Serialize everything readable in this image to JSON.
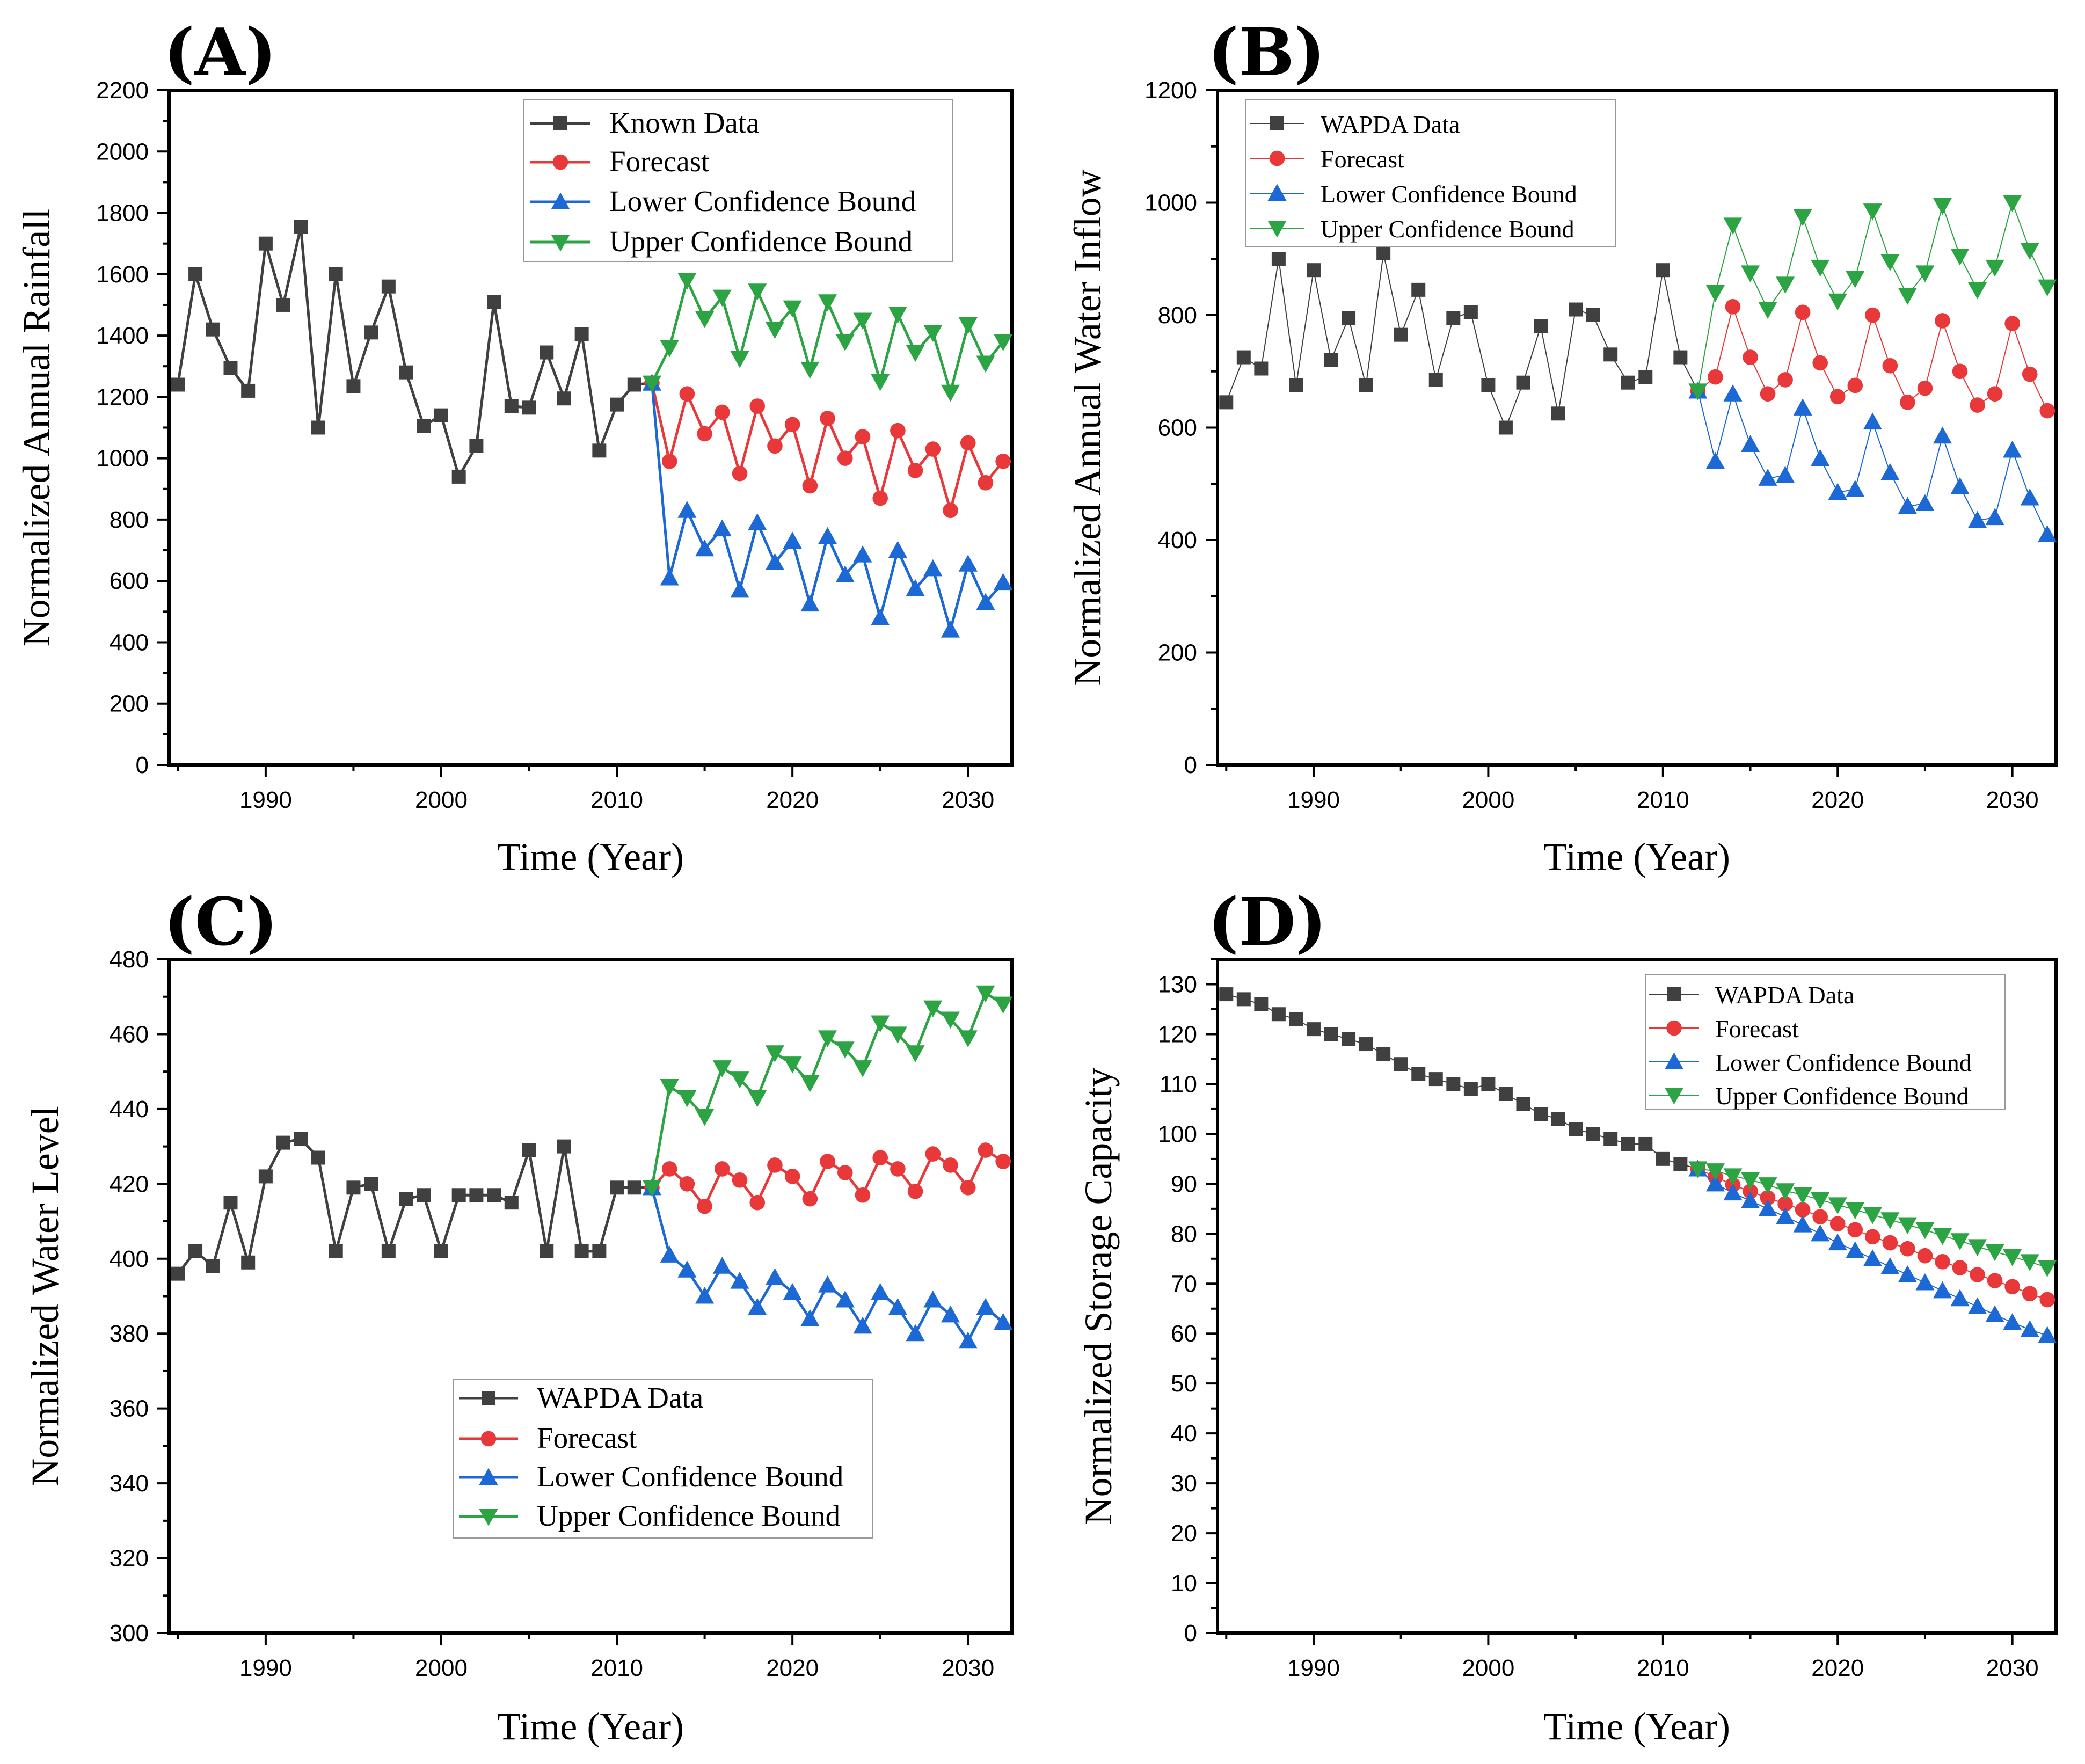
{
  "chart_data": [
    {
      "panel_label": "(A)",
      "type": "line",
      "xlabel": "Time (Year)",
      "ylabel": "Normalized Annual Rainfall",
      "xlim": [
        1984.5,
        2032.5
      ],
      "ylim": [
        0,
        2200
      ],
      "xticks": [
        1990,
        2000,
        2010,
        2020,
        2030
      ],
      "yticks": [
        0,
        200,
        400,
        600,
        800,
        1000,
        1200,
        1400,
        1600,
        1800,
        2000,
        2200
      ],
      "grid": false,
      "legend_position": "top-right",
      "series": [
        {
          "name": "Known Data",
          "color": "#404040",
          "marker": "square",
          "x": [
            1985,
            1986,
            1987,
            1988,
            1989,
            1990,
            1991,
            1992,
            1993,
            1994,
            1995,
            1996,
            1997,
            1998,
            1999,
            2000,
            2001,
            2002,
            2003,
            2004,
            2005,
            2006,
            2007,
            2008,
            2009,
            2010,
            2011,
            2012
          ],
          "values": [
            1240,
            1600,
            1420,
            1295,
            1220,
            1700,
            1500,
            1755,
            1100,
            1600,
            1235,
            1410,
            1560,
            1280,
            1105,
            1140,
            940,
            1040,
            1510,
            1170,
            1165,
            1345,
            1195,
            1405,
            1025,
            1175,
            1240,
            1245
          ]
        },
        {
          "name": "Forecast",
          "color": "#e8383a",
          "marker": "circle",
          "x": [
            2012,
            2013,
            2014,
            2015,
            2016,
            2017,
            2018,
            2019,
            2020,
            2021,
            2022,
            2023,
            2024,
            2025,
            2026,
            2027,
            2028,
            2029,
            2030,
            2031,
            2032
          ],
          "values": [
            1245,
            990,
            1210,
            1080,
            1150,
            950,
            1170,
            1040,
            1110,
            910,
            1130,
            1000,
            1070,
            870,
            1090,
            960,
            1030,
            830,
            1050,
            920,
            990
          ]
        },
        {
          "name": "Lower Confidence Bound",
          "color": "#1c68d4",
          "marker": "triangle-up",
          "x": [
            2012,
            2013,
            2014,
            2015,
            2016,
            2017,
            2018,
            2019,
            2020,
            2021,
            2022,
            2023,
            2024,
            2025,
            2026,
            2027,
            2028,
            2029,
            2030,
            2031,
            2032
          ],
          "values": [
            1245,
            610,
            830,
            705,
            770,
            570,
            790,
            660,
            730,
            525,
            745,
            620,
            685,
            480,
            700,
            575,
            640,
            440,
            655,
            530,
            595
          ]
        },
        {
          "name": "Upper Confidence Bound",
          "color": "#2ca444",
          "marker": "triangle-down",
          "x": [
            2012,
            2013,
            2014,
            2015,
            2016,
            2017,
            2018,
            2019,
            2020,
            2021,
            2022,
            2023,
            2024,
            2025,
            2026,
            2027,
            2028,
            2029,
            2030,
            2031,
            2032
          ],
          "values": [
            1245,
            1360,
            1580,
            1455,
            1525,
            1325,
            1545,
            1420,
            1490,
            1290,
            1510,
            1380,
            1450,
            1250,
            1470,
            1345,
            1410,
            1215,
            1435,
            1310,
            1380
          ]
        }
      ]
    },
    {
      "panel_label": "(B)",
      "type": "line",
      "xlabel": "Time (Year)",
      "ylabel": "Normalized Annual Water Inflow",
      "xlim": [
        1984.5,
        2032.5
      ],
      "ylim": [
        0,
        1200
      ],
      "xticks": [
        1990,
        2000,
        2010,
        2020,
        2030
      ],
      "yticks": [
        0,
        200,
        400,
        600,
        800,
        1000,
        1200
      ],
      "grid": false,
      "legend_position": "top-left",
      "series": [
        {
          "name": "WAPDA Data",
          "color": "#404040",
          "marker": "square",
          "x": [
            1985,
            1986,
            1987,
            1988,
            1989,
            1990,
            1991,
            1992,
            1993,
            1994,
            1995,
            1996,
            1997,
            1998,
            1999,
            2000,
            2001,
            2002,
            2003,
            2004,
            2005,
            2006,
            2007,
            2008,
            2009,
            2010,
            2011,
            2012
          ],
          "values": [
            645,
            725,
            705,
            900,
            675,
            880,
            720,
            795,
            675,
            910,
            765,
            845,
            685,
            795,
            805,
            675,
            600,
            680,
            780,
            625,
            810,
            800,
            730,
            680,
            690,
            880,
            725,
            665
          ]
        },
        {
          "name": "Forecast",
          "color": "#e8383a",
          "marker": "circle",
          "x": [
            2012,
            2013,
            2014,
            2015,
            2016,
            2017,
            2018,
            2019,
            2020,
            2021,
            2022,
            2023,
            2024,
            2025,
            2026,
            2027,
            2028,
            2029,
            2030,
            2031,
            2032
          ],
          "values": [
            665,
            690,
            815,
            725,
            660,
            685,
            805,
            715,
            655,
            675,
            800,
            710,
            645,
            670,
            790,
            700,
            640,
            660,
            785,
            695,
            630
          ]
        },
        {
          "name": "Lower Confidence Bound",
          "color": "#1c68d4",
          "marker": "triangle-up",
          "x": [
            2012,
            2013,
            2014,
            2015,
            2016,
            2017,
            2018,
            2019,
            2020,
            2021,
            2022,
            2023,
            2024,
            2025,
            2026,
            2027,
            2028,
            2029,
            2030,
            2031,
            2032
          ],
          "values": [
            665,
            540,
            660,
            570,
            510,
            515,
            635,
            545,
            485,
            490,
            610,
            520,
            460,
            465,
            585,
            495,
            435,
            440,
            560,
            475,
            410
          ]
        },
        {
          "name": "Upper Confidence Bound",
          "color": "#2ca444",
          "marker": "triangle-down",
          "x": [
            2012,
            2013,
            2014,
            2015,
            2016,
            2017,
            2018,
            2019,
            2020,
            2021,
            2022,
            2023,
            2024,
            2025,
            2026,
            2027,
            2028,
            2029,
            2030,
            2031,
            2032
          ],
          "values": [
            665,
            840,
            960,
            875,
            810,
            855,
            975,
            885,
            825,
            865,
            985,
            895,
            835,
            875,
            995,
            905,
            845,
            885,
            1000,
            915,
            850
          ]
        }
      ]
    },
    {
      "panel_label": "(C)",
      "type": "line",
      "xlabel": "Time (Year)",
      "ylabel": "Normalized Water Level",
      "xlim": [
        1984.5,
        2032.5
      ],
      "ylim": [
        300,
        480
      ],
      "xticks": [
        1990,
        2000,
        2010,
        2020,
        2030
      ],
      "yticks": [
        300,
        320,
        340,
        360,
        380,
        400,
        420,
        440,
        460,
        480
      ],
      "grid": false,
      "legend_position": "lower-center",
      "series": [
        {
          "name": "WAPDA Data",
          "color": "#404040",
          "marker": "square",
          "x": [
            1985,
            1986,
            1987,
            1988,
            1989,
            1990,
            1991,
            1992,
            1993,
            1994,
            1995,
            1996,
            1997,
            1998,
            1999,
            2000,
            2001,
            2002,
            2003,
            2004,
            2005,
            2006,
            2007,
            2008,
            2009,
            2010,
            2011,
            2012
          ],
          "values": [
            396,
            402,
            398,
            415,
            399,
            422,
            431,
            432,
            427,
            402,
            419,
            420,
            402,
            416,
            417,
            402,
            417,
            417,
            417,
            415,
            429,
            402,
            430,
            402,
            402,
            419,
            419,
            419
          ]
        },
        {
          "name": "Forecast",
          "color": "#e8383a",
          "marker": "circle",
          "x": [
            2012,
            2013,
            2014,
            2015,
            2016,
            2017,
            2018,
            2019,
            2020,
            2021,
            2022,
            2023,
            2024,
            2025,
            2026,
            2027,
            2028,
            2029,
            2030,
            2031,
            2032
          ],
          "values": [
            419,
            424,
            420,
            414,
            424,
            421,
            415,
            425,
            422,
            416,
            426,
            423,
            417,
            427,
            424,
            418,
            428,
            425,
            419,
            429,
            426
          ]
        },
        {
          "name": "Lower Confidence Bound",
          "color": "#1c68d4",
          "marker": "triangle-up",
          "x": [
            2012,
            2013,
            2014,
            2015,
            2016,
            2017,
            2018,
            2019,
            2020,
            2021,
            2022,
            2023,
            2024,
            2025,
            2026,
            2027,
            2028,
            2029,
            2030,
            2031,
            2032
          ],
          "values": [
            419,
            401,
            397,
            390,
            398,
            394,
            387,
            395,
            391,
            384,
            393,
            389,
            382,
            391,
            387,
            380,
            389,
            385,
            378,
            387,
            383
          ]
        },
        {
          "name": "Upper Confidence Bound",
          "color": "#2ca444",
          "marker": "triangle-down",
          "x": [
            2012,
            2013,
            2014,
            2015,
            2016,
            2017,
            2018,
            2019,
            2020,
            2021,
            2022,
            2023,
            2024,
            2025,
            2026,
            2027,
            2028,
            2029,
            2030,
            2031,
            2032
          ],
          "values": [
            419,
            446,
            443,
            438,
            451,
            448,
            443,
            455,
            452,
            447,
            459,
            456,
            451,
            463,
            460,
            455,
            467,
            464,
            459,
            471,
            468
          ]
        }
      ]
    },
    {
      "panel_label": "(D)",
      "type": "line",
      "xlabel": "Time (Year)",
      "ylabel": "Normalized Storage Capacity",
      "xlim": [
        1984.5,
        2032.5
      ],
      "ylim": [
        0,
        135
      ],
      "xticks": [
        1990,
        2000,
        2010,
        2020,
        2030
      ],
      "yticks": [
        0,
        10,
        20,
        30,
        40,
        50,
        60,
        70,
        80,
        90,
        100,
        110,
        120,
        130
      ],
      "grid": false,
      "legend_position": "top-right",
      "series": [
        {
          "name": "WAPDA Data",
          "color": "#404040",
          "marker": "square",
          "x": [
            1985,
            1986,
            1987,
            1988,
            1989,
            1990,
            1991,
            1992,
            1993,
            1994,
            1995,
            1996,
            1997,
            1998,
            1999,
            2000,
            2001,
            2002,
            2003,
            2004,
            2005,
            2006,
            2007,
            2008,
            2009,
            2010,
            2011,
            2012
          ],
          "values": [
            128,
            127,
            126,
            124,
            123,
            121,
            120,
            119,
            118,
            116,
            114,
            112,
            111,
            110,
            109,
            110,
            108,
            106,
            104,
            103,
            101,
            100,
            99,
            98,
            98,
            95,
            94,
            93
          ]
        },
        {
          "name": "Forecast",
          "color": "#e8383a",
          "marker": "circle",
          "x": [
            2012,
            2013,
            2014,
            2015,
            2016,
            2017,
            2018,
            2019,
            2020,
            2021,
            2022,
            2023,
            2024,
            2025,
            2026,
            2027,
            2028,
            2029,
            2030,
            2031,
            2032
          ],
          "values": [
            93,
            91.4,
            89.8,
            88.5,
            87.2,
            86.0,
            84.8,
            83.4,
            82.0,
            80.8,
            79.4,
            78.2,
            77.0,
            75.6,
            74.4,
            73.2,
            71.8,
            70.6,
            69.4,
            68.0,
            66.8
          ]
        },
        {
          "name": "Lower Confidence Bound",
          "color": "#1c68d4",
          "marker": "triangle-up",
          "x": [
            2012,
            2013,
            2014,
            2015,
            2016,
            2017,
            2018,
            2019,
            2020,
            2021,
            2022,
            2023,
            2024,
            2025,
            2026,
            2027,
            2028,
            2029,
            2030,
            2031,
            2032
          ],
          "values": [
            93,
            90.0,
            88.2,
            86.6,
            85.0,
            83.4,
            81.8,
            80.0,
            78.2,
            76.6,
            75.0,
            73.4,
            71.8,
            70.2,
            68.6,
            67.0,
            65.4,
            63.8,
            62.2,
            60.8,
            59.6
          ]
        },
        {
          "name": "Upper Confidence Bound",
          "color": "#2ca444",
          "marker": "triangle-down",
          "x": [
            2012,
            2013,
            2014,
            2015,
            2016,
            2017,
            2018,
            2019,
            2020,
            2021,
            2022,
            2023,
            2024,
            2025,
            2026,
            2027,
            2028,
            2029,
            2030,
            2031,
            2032
          ],
          "values": [
            93,
            92.6,
            91.6,
            90.8,
            89.8,
            88.6,
            87.8,
            86.8,
            85.8,
            84.8,
            83.8,
            82.8,
            81.8,
            80.8,
            79.6,
            78.6,
            77.4,
            76.4,
            75.4,
            74.4,
            73.2
          ]
        }
      ]
    }
  ]
}
